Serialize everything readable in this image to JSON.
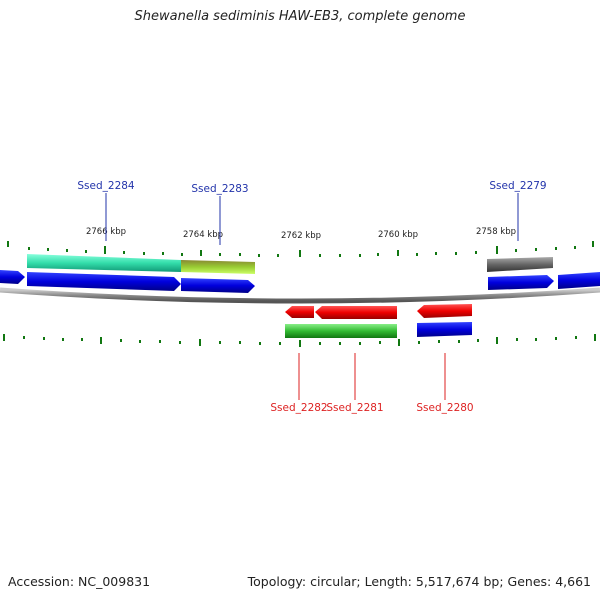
{
  "title": "Shewanella sediminis HAW-EB3, complete genome",
  "footer": {
    "accession": "Accession: NC_009831",
    "summary": "Topology: circular; Length: 5,517,674 bp; Genes: 4,661"
  },
  "scale": {
    "unit": "kbp",
    "ticks": [
      {
        "label": "2766 kbp",
        "pos_kbp": 2766
      },
      {
        "label": "2764 kbp",
        "pos_kbp": 2764
      },
      {
        "label": "2762 kbp",
        "pos_kbp": 2762
      },
      {
        "label": "2760 kbp",
        "pos_kbp": 2760
      },
      {
        "label": "2758 kbp",
        "pos_kbp": 2758
      }
    ]
  },
  "genes": {
    "forward": [
      {
        "name": "Ssed_2284",
        "color": "#0000cc"
      },
      {
        "name": "Ssed_2283",
        "color": "#0000cc"
      },
      {
        "name": "Ssed_2279",
        "color": "#0000cc"
      }
    ],
    "reverse": [
      {
        "name": "Ssed_2282",
        "color": "#dd0000"
      },
      {
        "name": "Ssed_2281",
        "color": "#dd0000"
      },
      {
        "name": "Ssed_2280",
        "color": "#dd0000"
      }
    ]
  },
  "colors": {
    "forward_label": "#2233aa",
    "reverse_label": "#dd2222",
    "backbone": "#888888",
    "tick": "#117711",
    "forward_cds": "#0000dd",
    "reverse_cds": "#ee0000",
    "cog_teal": "#33ddaa",
    "cog_olive": "#99cc33",
    "cog_gray": "#666666",
    "cog_green": "#33bb33",
    "cog_blue": "#1122dd"
  }
}
